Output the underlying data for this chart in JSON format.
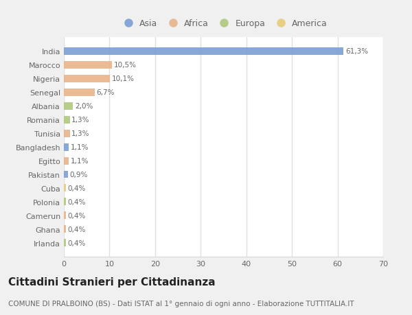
{
  "countries": [
    "India",
    "Marocco",
    "Nigeria",
    "Senegal",
    "Albania",
    "Romania",
    "Tunisia",
    "Bangladesh",
    "Egitto",
    "Pakistan",
    "Cuba",
    "Polonia",
    "Camerun",
    "Ghana",
    "Irlanda"
  ],
  "values": [
    61.3,
    10.5,
    10.1,
    6.7,
    2.0,
    1.3,
    1.3,
    1.1,
    1.1,
    0.9,
    0.4,
    0.4,
    0.4,
    0.4,
    0.4
  ],
  "labels": [
    "61,3%",
    "10,5%",
    "10,1%",
    "6,7%",
    "2,0%",
    "1,3%",
    "1,3%",
    "1,1%",
    "1,1%",
    "0,9%",
    "0,4%",
    "0,4%",
    "0,4%",
    "0,4%",
    "0,4%"
  ],
  "continents": [
    "Asia",
    "Africa",
    "Africa",
    "Africa",
    "Europa",
    "Europa",
    "Africa",
    "Asia",
    "Africa",
    "Asia",
    "America",
    "Europa",
    "Africa",
    "Africa",
    "Europa"
  ],
  "continent_colors": {
    "Asia": "#7b9fd4",
    "Africa": "#e8b48a",
    "Europa": "#afc97e",
    "America": "#e8cc7a"
  },
  "legend_order": [
    "Asia",
    "Africa",
    "Europa",
    "America"
  ],
  "xlim": [
    0,
    70
  ],
  "xticks": [
    0,
    10,
    20,
    30,
    40,
    50,
    60,
    70
  ],
  "title": "Cittadini Stranieri per Cittadinanza",
  "subtitle": "COMUNE DI PRALBOINO (BS) - Dati ISTAT al 1° gennaio di ogni anno - Elaborazione TUTTITALIA.IT",
  "background_color": "#f0f0f0",
  "chart_bg_color": "#ffffff",
  "bar_height": 0.55,
  "font_color": "#666666",
  "title_color": "#222222",
  "label_fontsize": 7.5,
  "tick_fontsize": 8,
  "legend_fontsize": 9,
  "title_fontsize": 11,
  "subtitle_fontsize": 7.5
}
